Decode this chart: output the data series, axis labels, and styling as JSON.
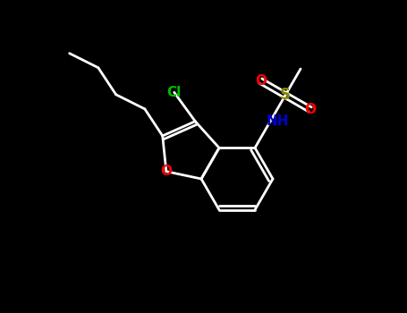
{
  "background_color": "#000000",
  "bond_color": "#ffffff",
  "figsize": [
    4.55,
    3.5
  ],
  "dpi": 100,
  "colors": {
    "C": "#ffffff",
    "Cl": "#00bb00",
    "O": "#ff0000",
    "N": "#0000cc",
    "S": "#888800"
  },
  "lw": 2.0
}
